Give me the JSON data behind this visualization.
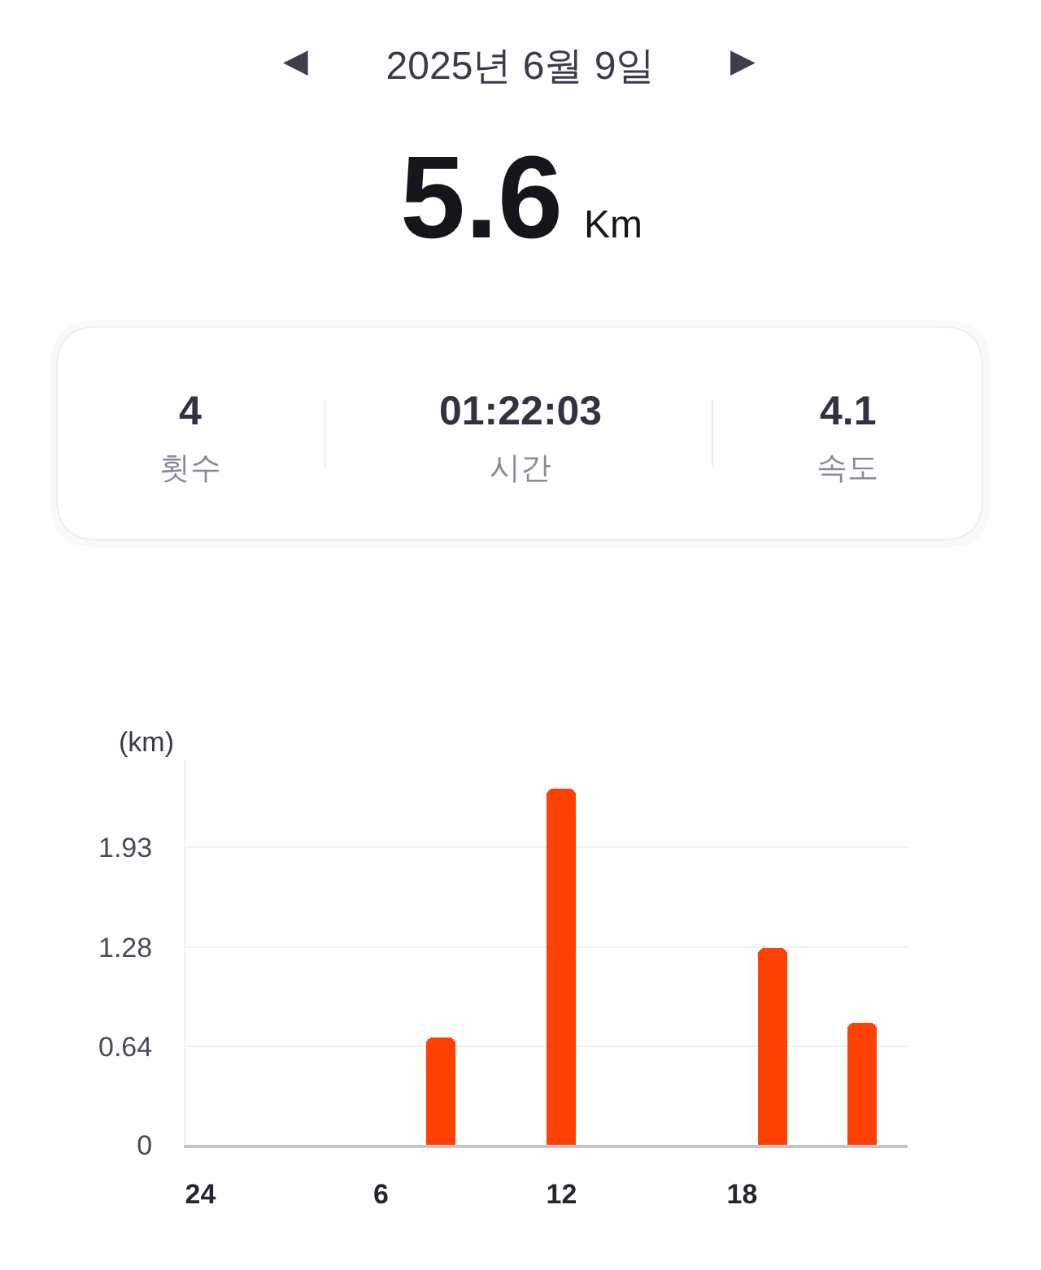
{
  "chart_data": {
    "type": "bar",
    "title": "2025년 6월 9일",
    "annotations": [
      "◀",
      "▶",
      "5.6",
      "Km",
      "4",
      "횟수",
      "01:22:03",
      "시간",
      "4.1",
      "속도"
    ],
    "ylabel": "(km)",
    "categories": [
      "24",
      null,
      null,
      null,
      null,
      null,
      "6",
      null,
      null,
      null,
      null,
      null,
      "12",
      null,
      null,
      null,
      null,
      null,
      "18",
      null,
      null,
      null,
      null,
      null
    ],
    "values": [
      null,
      null,
      null,
      null,
      null,
      null,
      null,
      null,
      0.7,
      null,
      null,
      null,
      2.31,
      null,
      null,
      null,
      null,
      null,
      null,
      1.28,
      null,
      null,
      0.79,
      null
    ],
    "color": "#ff4203",
    "ylim": [
      0,
      2.5
    ],
    "yticks": [
      0,
      0.64,
      1.28,
      1.93
    ],
    "grid": "y"
  }
}
